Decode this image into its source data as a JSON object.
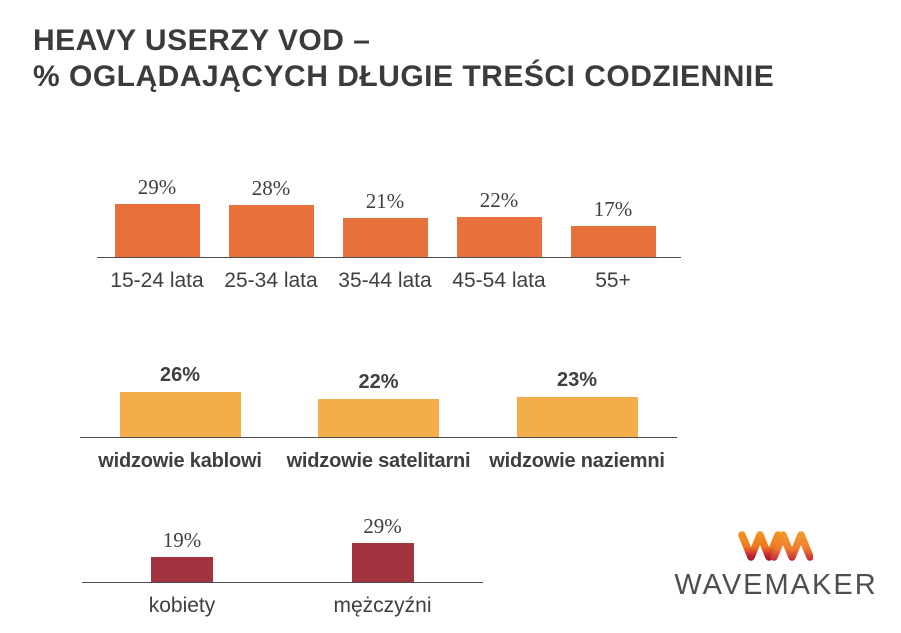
{
  "title": {
    "line1": "HEAVY USERZY VOD –",
    "line2": "% OGLĄDAJĄCYCH DŁUGIE TREŚCI CODZIENNIE"
  },
  "palette": {
    "title_text": "#3b3b3b",
    "label_text": "#3f3f3f",
    "axis_line": "#4d4d4d"
  },
  "chart_data": [
    {
      "type": "bar",
      "categories": [
        "15-24 lata",
        "25-34 lata",
        "35-44 lata",
        "45-54 lata",
        "55+"
      ],
      "values": [
        29,
        28,
        21,
        22,
        17
      ],
      "unit": "%",
      "bar_color": "#E8703A",
      "title": "",
      "xlabel": "",
      "ylabel": "",
      "ylim": [
        0,
        30
      ],
      "grid": false,
      "legend": null,
      "value_labels_shown": true
    },
    {
      "type": "bar",
      "categories": [
        "widzowie kablowi",
        "widzowie satelitarni",
        "widzowie naziemni"
      ],
      "values": [
        26,
        22,
        23
      ],
      "unit": "%",
      "bar_color": "#F3AE4B",
      "title": "",
      "xlabel": "",
      "ylabel": "",
      "ylim": [
        0,
        30
      ],
      "grid": false,
      "legend": null,
      "value_labels_shown": true
    },
    {
      "type": "bar",
      "categories": [
        "kobiety",
        "mężczyźni"
      ],
      "values": [
        19,
        29
      ],
      "unit": "%",
      "bar_color": "#A23440",
      "title": "",
      "xlabel": "",
      "ylabel": "",
      "ylim": [
        0,
        30
      ],
      "grid": false,
      "legend": null,
      "value_labels_shown": true
    }
  ],
  "logo": {
    "brand": "WAVEMAKER",
    "mark": "wm-monogram",
    "colors": {
      "orange_light": "#F2941F",
      "orange": "#EE7623",
      "red": "#C42430",
      "maroon": "#99202F",
      "text_gray": "#4d4f53"
    }
  }
}
